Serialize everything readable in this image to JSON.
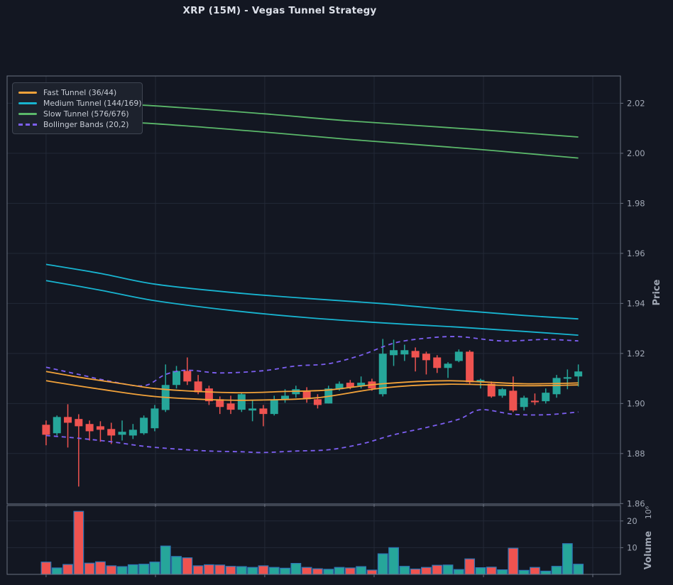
{
  "title": "XRP (15M) - Vegas Tunnel Strategy",
  "legend": {
    "items": [
      {
        "label": "Fast Tunnel (36/44)",
        "color": "#f2a23a",
        "dashed": false
      },
      {
        "label": "Medium Tunnel (144/169)",
        "color": "#18b4d0",
        "dashed": false
      },
      {
        "label": "Slow Tunnel (576/676)",
        "color": "#5bb86a",
        "dashed": false
      },
      {
        "label": "Bollinger Bands (20,2)",
        "color": "#7d5ff2",
        "dashed": true
      }
    ]
  },
  "axes": {
    "price_label": "Price",
    "volume_label": "Volume",
    "volume_multiplier": "10⁶",
    "price_tick_labels": [
      "2.02",
      "2.00",
      "1.98",
      "1.96",
      "1.94",
      "1.92",
      "1.90",
      "1.88",
      "1.86"
    ],
    "price_tick_values": [
      2.02,
      2.0,
      1.98,
      1.96,
      1.94,
      1.92,
      1.9,
      1.88,
      1.86
    ],
    "volume_tick_labels": [
      "20",
      "10"
    ],
    "volume_tick_values": [
      20,
      10
    ]
  },
  "colors": {
    "background": "#131722",
    "grid": "#232937",
    "spine": "#6a7180",
    "tick_text": "#a0a7b4",
    "up": "#26a69a",
    "down": "#ef5350",
    "volume_edge": "#2e75b6",
    "fast_tunnel": "#f2a23a",
    "medium_tunnel": "#18b4d0",
    "slow_tunnel": "#5bb86a",
    "bollinger": "#7d5ff2"
  },
  "chart_data": {
    "type": "candlestick+volume",
    "title": "XRP (15M) - Vegas Tunnel Strategy",
    "xlabel": "",
    "ylabel": "Price",
    "ylabel2": "Volume",
    "volume_unit": "1e6",
    "grid": true,
    "legend_position": "upper-left",
    "xlim": [
      -3.59,
      52.88
    ],
    "x_ticks": [
      0,
      10.07,
      20.13,
      30.2,
      40.27,
      50.33
    ],
    "price_ylim": [
      1.8598,
      2.0309
    ],
    "volume_ylim": [
      0,
      25.8
    ],
    "candles_format": [
      "open",
      "high",
      "low",
      "close",
      "volume_millions"
    ],
    "candles": [
      [
        1.8915,
        1.8932,
        1.8833,
        1.8875,
        4.6
      ],
      [
        1.8881,
        1.8952,
        1.8872,
        1.8946,
        2.4
      ],
      [
        1.8946,
        1.8997,
        1.8824,
        1.8923,
        3.7
      ],
      [
        1.8938,
        1.8957,
        1.8668,
        1.8909,
        23.6
      ],
      [
        1.8918,
        1.8932,
        1.8852,
        1.8889,
        4.2
      ],
      [
        1.8909,
        1.8929,
        1.8847,
        1.8895,
        4.7
      ],
      [
        1.8898,
        1.8923,
        1.8838,
        1.8872,
        3.2
      ],
      [
        1.8875,
        1.8932,
        1.8852,
        1.8887,
        2.9
      ],
      [
        1.8872,
        1.8918,
        1.8858,
        1.8895,
        3.6
      ],
      [
        1.8881,
        1.8952,
        1.8875,
        1.8943,
        3.8
      ],
      [
        1.8901,
        1.8994,
        1.8889,
        1.898,
        4.6
      ],
      [
        1.8974,
        1.9156,
        1.8966,
        1.9074,
        10.6
      ],
      [
        1.9074,
        1.915,
        1.906,
        1.913,
        6.7
      ],
      [
        1.913,
        1.9184,
        1.9074,
        1.9088,
        6.2
      ],
      [
        1.9088,
        1.9114,
        1.9037,
        1.9045,
        3.2
      ],
      [
        1.906,
        1.9071,
        1.8994,
        1.9009,
        3.6
      ],
      [
        1.9017,
        1.9028,
        1.8958,
        1.8986,
        3.5
      ],
      [
        1.9,
        1.9031,
        1.8958,
        1.8975,
        3.0
      ],
      [
        1.8975,
        1.9045,
        1.8966,
        1.9037,
        2.9
      ],
      [
        1.8972,
        1.9014,
        1.8929,
        1.898,
        2.6
      ],
      [
        1.898,
        1.8994,
        1.8909,
        1.8958,
        3.2
      ],
      [
        1.8958,
        1.9031,
        1.8952,
        1.9014,
        2.6
      ],
      [
        1.9014,
        1.9057,
        1.9003,
        1.9031,
        2.3
      ],
      [
        1.9037,
        1.9071,
        1.9023,
        1.9057,
        4.1
      ],
      [
        1.9051,
        1.9065,
        1.9003,
        1.9017,
        2.6
      ],
      [
        1.9017,
        1.9037,
        1.898,
        1.8994,
        2.1
      ],
      [
        1.9,
        1.9071,
        1.9,
        1.906,
        1.9
      ],
      [
        1.9057,
        1.9088,
        1.9051,
        1.9079,
        2.6
      ],
      [
        1.9083,
        1.9094,
        1.9057,
        1.9065,
        2.4
      ],
      [
        1.9071,
        1.9108,
        1.906,
        1.9083,
        2.9
      ],
      [
        1.9088,
        1.9099,
        1.9051,
        1.906,
        1.6
      ],
      [
        1.9037,
        1.9258,
        1.9028,
        1.9199,
        7.7
      ],
      [
        1.9193,
        1.9255,
        1.915,
        1.9213,
        10.0
      ],
      [
        1.9196,
        1.9235,
        1.917,
        1.9213,
        3.0
      ],
      [
        1.921,
        1.9224,
        1.9128,
        1.9184,
        2.0
      ],
      [
        1.9199,
        1.9207,
        1.9116,
        1.9173,
        2.6
      ],
      [
        1.9184,
        1.9193,
        1.9122,
        1.9142,
        3.4
      ],
      [
        1.9142,
        1.9165,
        1.9102,
        1.9159,
        3.5
      ],
      [
        1.917,
        1.9216,
        1.9165,
        1.9207,
        1.8
      ],
      [
        1.9207,
        1.9213,
        1.9079,
        1.9085,
        5.8
      ],
      [
        1.9091,
        1.9099,
        1.906,
        1.9094,
        2.5
      ],
      [
        1.9079,
        1.9088,
        1.9023,
        1.9028,
        2.7
      ],
      [
        1.9031,
        1.9062,
        1.9023,
        1.9057,
        1.7
      ],
      [
        1.9051,
        1.9108,
        1.8966,
        1.8972,
        9.8
      ],
      [
        1.8986,
        1.9031,
        1.8972,
        1.9023,
        1.5
      ],
      [
        1.9011,
        1.904,
        1.8994,
        1.9005,
        2.6
      ],
      [
        1.9009,
        1.906,
        1.9,
        1.9043,
        1.2
      ],
      [
        1.9037,
        1.9114,
        1.9023,
        1.9102,
        3.0
      ],
      [
        1.9099,
        1.9136,
        1.9057,
        1.9105,
        11.5
      ],
      [
        1.9108,
        1.9156,
        1.9068,
        1.9128,
        3.8
      ]
    ],
    "series": [
      {
        "name": "slow-tunnel-576",
        "color_key": "slow_tunnel",
        "dashed": false,
        "points": [
          [
            0,
            2.0206
          ],
          [
            9,
            2.0192
          ],
          [
            20,
            2.0158
          ],
          [
            28,
            2.0129
          ],
          [
            40,
            2.0094
          ],
          [
            49,
            2.0065
          ]
        ]
      },
      {
        "name": "slow-tunnel-676",
        "color_key": "slow_tunnel",
        "dashed": false,
        "points": [
          [
            0,
            2.0135
          ],
          [
            9,
            2.0121
          ],
          [
            20,
            2.0085
          ],
          [
            28,
            2.0055
          ],
          [
            40,
            2.0015
          ],
          [
            49,
            1.9981
          ]
        ]
      },
      {
        "name": "medium-tunnel-144",
        "color_key": "medium_tunnel",
        "dashed": false,
        "points": [
          [
            0,
            1.9556
          ],
          [
            5,
            1.952
          ],
          [
            10,
            1.9477
          ],
          [
            17,
            1.9444
          ],
          [
            24,
            1.942
          ],
          [
            31,
            1.9399
          ],
          [
            38,
            1.9372
          ],
          [
            44,
            1.9352
          ],
          [
            49,
            1.9338
          ]
        ]
      },
      {
        "name": "medium-tunnel-169",
        "color_key": "medium_tunnel",
        "dashed": false,
        "points": [
          [
            0,
            1.9491
          ],
          [
            5,
            1.9453
          ],
          [
            10,
            1.9411
          ],
          [
            17,
            1.9372
          ],
          [
            24,
            1.9343
          ],
          [
            31,
            1.9322
          ],
          [
            38,
            1.9305
          ],
          [
            44,
            1.9288
          ],
          [
            49,
            1.9273
          ]
        ]
      },
      {
        "name": "bollinger-upper",
        "color_key": "bollinger",
        "dashed": true,
        "points": [
          [
            0,
            1.9145
          ],
          [
            3,
            1.9116
          ],
          [
            6,
            1.9088
          ],
          [
            9,
            1.9071
          ],
          [
            11,
            1.9116
          ],
          [
            13,
            1.9133
          ],
          [
            16,
            1.9122
          ],
          [
            20,
            1.9131
          ],
          [
            23,
            1.915
          ],
          [
            26,
            1.9159
          ],
          [
            29,
            1.9193
          ],
          [
            32,
            1.9241
          ],
          [
            35,
            1.9261
          ],
          [
            38,
            1.9267
          ],
          [
            42,
            1.925
          ],
          [
            46,
            1.9256
          ],
          [
            49,
            1.925
          ]
        ]
      },
      {
        "name": "bollinger-lower",
        "color_key": "bollinger",
        "dashed": true,
        "points": [
          [
            0,
            1.8872
          ],
          [
            3,
            1.8861
          ],
          [
            6,
            1.8847
          ],
          [
            9,
            1.8829
          ],
          [
            12,
            1.8818
          ],
          [
            15,
            1.881
          ],
          [
            18,
            1.8807
          ],
          [
            20,
            1.8804
          ],
          [
            23,
            1.881
          ],
          [
            26,
            1.8815
          ],
          [
            29,
            1.8838
          ],
          [
            32,
            1.8875
          ],
          [
            35,
            1.8904
          ],
          [
            38,
            1.8937
          ],
          [
            40,
            1.8975
          ],
          [
            43,
            1.8957
          ],
          [
            46,
            1.8955
          ],
          [
            49,
            1.8966
          ]
        ]
      },
      {
        "name": "fast-tunnel-36",
        "color_key": "fast_tunnel",
        "dashed": false,
        "points": [
          [
            0,
            1.9128
          ],
          [
            3,
            1.9105
          ],
          [
            7,
            1.9079
          ],
          [
            10,
            1.906
          ],
          [
            14,
            1.9048
          ],
          [
            18,
            1.9043
          ],
          [
            22,
            1.9048
          ],
          [
            26,
            1.9054
          ],
          [
            31,
            1.9079
          ],
          [
            37,
            1.9091
          ],
          [
            44,
            1.9079
          ],
          [
            49,
            1.9082
          ]
        ]
      },
      {
        "name": "fast-tunnel-44",
        "color_key": "fast_tunnel",
        "dashed": false,
        "points": [
          [
            0,
            1.9091
          ],
          [
            5,
            1.9057
          ],
          [
            10,
            1.9028
          ],
          [
            16,
            1.9014
          ],
          [
            20,
            1.9014
          ],
          [
            25,
            1.9023
          ],
          [
            31,
            1.9062
          ],
          [
            37,
            1.9077
          ],
          [
            44,
            1.9071
          ],
          [
            49,
            1.9074
          ]
        ]
      }
    ]
  }
}
